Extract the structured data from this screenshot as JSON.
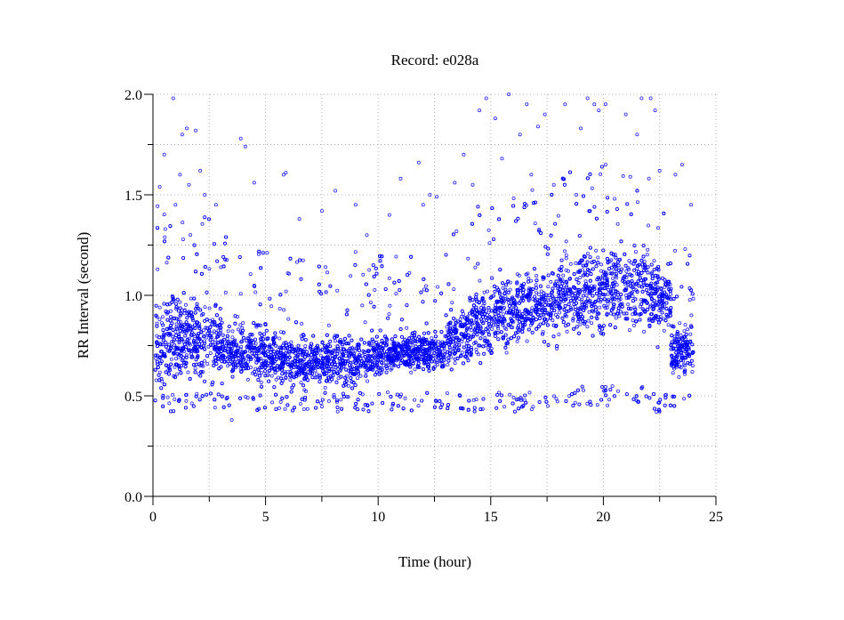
{
  "chart_data": {
    "type": "scatter",
    "title": "Record:  e028a",
    "xlabel": "Time (hour)",
    "ylabel": "RR Interval (second)",
    "xlim": [
      0,
      25
    ],
    "ylim": [
      0,
      2.0
    ],
    "xticks": [
      "0",
      "5",
      "10",
      "15",
      "20",
      "25"
    ],
    "yticks": [
      "0.0",
      "0.5",
      "1.0",
      "1.5",
      "2.0"
    ],
    "grid": true,
    "marker_color": "#0000ff",
    "data_range_x": [
      0.1,
      24.0
    ],
    "dense_band_by_hour": [
      {
        "hour": 0,
        "low": 0.45,
        "mid": 0.78,
        "high": 1.1
      },
      {
        "hour": 1,
        "low": 0.5,
        "mid": 0.8,
        "high": 1.1
      },
      {
        "hour": 2,
        "low": 0.5,
        "mid": 0.78,
        "high": 1.05
      },
      {
        "hour": 3,
        "low": 0.55,
        "mid": 0.72,
        "high": 0.95
      },
      {
        "hour": 4,
        "low": 0.52,
        "mid": 0.7,
        "high": 0.92
      },
      {
        "hour": 5,
        "low": 0.53,
        "mid": 0.68,
        "high": 0.9
      },
      {
        "hour": 6,
        "low": 0.5,
        "mid": 0.65,
        "high": 0.85
      },
      {
        "hour": 7,
        "low": 0.52,
        "mid": 0.66,
        "high": 0.85
      },
      {
        "hour": 8,
        "low": 0.5,
        "mid": 0.66,
        "high": 0.88
      },
      {
        "hour": 9,
        "low": 0.55,
        "mid": 0.68,
        "high": 0.82
      },
      {
        "hour": 10,
        "low": 0.58,
        "mid": 0.7,
        "high": 0.85
      },
      {
        "hour": 11,
        "low": 0.6,
        "mid": 0.72,
        "high": 0.85
      },
      {
        "hour": 12,
        "low": 0.6,
        "mid": 0.72,
        "high": 0.85
      },
      {
        "hour": 13,
        "low": 0.6,
        "mid": 0.78,
        "high": 1.0
      },
      {
        "hour": 14,
        "low": 0.6,
        "mid": 0.88,
        "high": 1.1
      },
      {
        "hour": 15,
        "low": 0.65,
        "mid": 0.92,
        "high": 1.2
      },
      {
        "hour": 16,
        "low": 0.68,
        "mid": 0.95,
        "high": 1.2
      },
      {
        "hour": 17,
        "low": 0.7,
        "mid": 0.95,
        "high": 1.2
      },
      {
        "hour": 18,
        "low": 0.72,
        "mid": 1.02,
        "high": 1.3
      },
      {
        "hour": 19,
        "low": 0.72,
        "mid": 1.02,
        "high": 1.3
      },
      {
        "hour": 20,
        "low": 0.75,
        "mid": 1.05,
        "high": 1.32
      },
      {
        "hour": 21,
        "low": 0.75,
        "mid": 1.05,
        "high": 1.3
      },
      {
        "hour": 22,
        "low": 0.7,
        "mid": 1.0,
        "high": 1.25
      },
      {
        "hour": 23,
        "low": 0.55,
        "mid": 0.72,
        "high": 0.9
      }
    ],
    "outlier_points": [
      [
        0.9,
        1.98
      ],
      [
        1.5,
        1.83
      ],
      [
        1.3,
        1.8
      ],
      [
        1.9,
        1.82
      ],
      [
        0.5,
        1.7
      ],
      [
        1.2,
        1.6
      ],
      [
        1.6,
        1.55
      ],
      [
        2.1,
        1.62
      ],
      [
        0.3,
        1.54
      ],
      [
        2.3,
        1.5
      ],
      [
        3.9,
        1.78
      ],
      [
        4.1,
        1.74
      ],
      [
        5.8,
        1.6
      ],
      [
        5.9,
        1.61
      ],
      [
        4.5,
        1.56
      ],
      [
        8.1,
        1.52
      ],
      [
        11.0,
        1.58
      ],
      [
        11.8,
        1.66
      ],
      [
        12.0,
        1.45
      ],
      [
        12.6,
        1.49
      ],
      [
        13.8,
        1.7
      ],
      [
        14.5,
        1.92
      ],
      [
        14.8,
        1.98
      ],
      [
        15.8,
        2.0
      ],
      [
        15.2,
        1.88
      ],
      [
        16.3,
        1.8
      ],
      [
        16.6,
        1.95
      ],
      [
        17.4,
        1.9
      ],
      [
        17.1,
        1.84
      ],
      [
        18.3,
        1.95
      ],
      [
        19.3,
        1.98
      ],
      [
        19.6,
        1.95
      ],
      [
        19.8,
        1.92
      ],
      [
        20.1,
        1.95
      ],
      [
        21.0,
        1.9
      ],
      [
        21.7,
        1.98
      ],
      [
        22.1,
        1.98
      ],
      [
        22.3,
        1.92
      ],
      [
        21.5,
        1.8
      ],
      [
        19.0,
        1.83
      ],
      [
        15.5,
        1.68
      ],
      [
        14.2,
        1.55
      ],
      [
        16.8,
        1.6
      ],
      [
        17.8,
        1.55
      ],
      [
        18.8,
        1.5
      ],
      [
        20.5,
        1.48
      ],
      [
        22.5,
        1.62
      ],
      [
        23.5,
        1.65
      ],
      [
        23.2,
        1.6
      ],
      [
        23.9,
        1.45
      ],
      [
        3.5,
        0.38
      ],
      [
        6.5,
        1.38
      ],
      [
        7.5,
        1.42
      ],
      [
        9.0,
        1.45
      ],
      [
        10.5,
        1.4
      ],
      [
        2.8,
        1.45
      ],
      [
        1.0,
        1.45
      ],
      [
        9.5,
        1.3
      ],
      [
        12.3,
        1.5
      ],
      [
        13.4,
        1.56
      ]
    ]
  }
}
